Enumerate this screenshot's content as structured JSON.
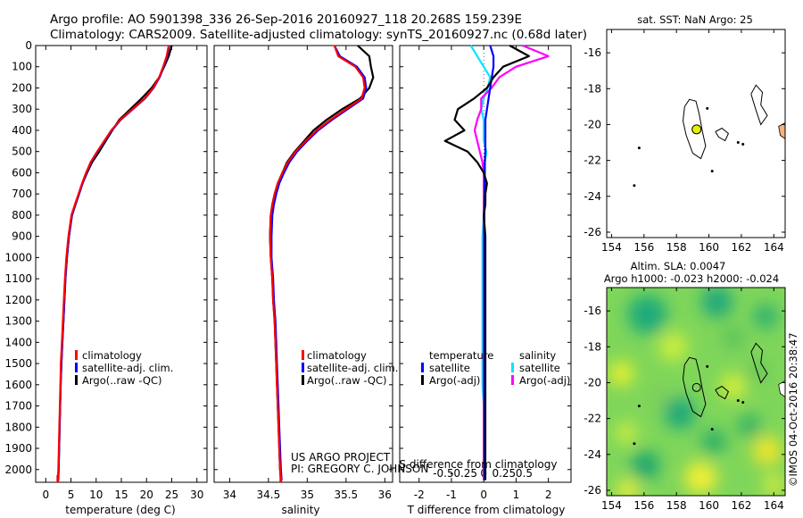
{
  "header": {
    "line1": "Argo profile: AO 5901398_336 26-Sep-2016 20160927_118 20.268S 159.239E",
    "line2": "Climatology: CARS2009. Satellite-adjusted climatology: synTS_20160927.nc (0.68d later)"
  },
  "colors": {
    "climatology": "#ff0000",
    "satellite": "#0000ff",
    "argo": "#000000",
    "salinity_satellite": "#00e5ff",
    "salinity_argo": "#ff00ff",
    "land": "#f5b27a",
    "float_marker": "#e6f000"
  },
  "credits": {
    "project": "US ARGO PROJECT",
    "pi": "PI: GREGORY C. JOHNSON",
    "imos": "©IMOS 04-Oct-2016 20:38:47"
  },
  "chart_data": [
    {
      "type": "line",
      "xlabel": "temperature (deg C)",
      "xticks": [
        0,
        5,
        10,
        15,
        20,
        25,
        30
      ],
      "xlim": [
        -2,
        32
      ],
      "yticks": [
        0,
        100,
        200,
        300,
        400,
        500,
        600,
        700,
        800,
        900,
        1000,
        1100,
        1200,
        1300,
        1400,
        1500,
        1600,
        1700,
        1800,
        1900,
        2000
      ],
      "ylim": [
        2060,
        0
      ],
      "legend": [
        "climatology",
        "satellite-adj. clim.",
        "Argo(..raw -QC)"
      ],
      "depth": [
        0,
        50,
        100,
        150,
        200,
        250,
        300,
        350,
        400,
        450,
        500,
        550,
        600,
        650,
        700,
        750,
        800,
        900,
        1000,
        1100,
        1200,
        1300,
        1400,
        1500,
        1600,
        1700,
        1800,
        1900,
        2000,
        2050
      ],
      "series": [
        {
          "name": "climatology",
          "values": [
            24.4,
            24,
            23.3,
            22.5,
            21.3,
            19.6,
            17.2,
            14.8,
            13.0,
            11.6,
            10.2,
            8.9,
            8.0,
            7.2,
            6.5,
            5.8,
            5.1,
            4.5,
            4.1,
            3.8,
            3.6,
            3.4,
            3.2,
            3.0,
            2.9,
            2.8,
            2.7,
            2.6,
            2.5,
            2.4
          ]
        },
        {
          "name": "satellite-adj. clim.",
          "values": [
            24.5,
            24.1,
            23.4,
            22.6,
            21.4,
            19.7,
            17.3,
            14.9,
            13.1,
            11.7,
            10.3,
            9.0,
            8.1,
            7.3,
            6.6,
            5.9,
            5.2,
            4.6,
            4.2,
            3.9,
            3.7,
            3.5,
            3.3,
            3.1,
            2.95,
            2.85,
            2.75,
            2.65,
            2.55,
            2.45
          ]
        },
        {
          "name": "Argo(..raw -QC)",
          "values": [
            25.0,
            24.4,
            23.5,
            22.5,
            21.0,
            19.0,
            16.8,
            14.6,
            13.2,
            11.9,
            10.6,
            9.2,
            8.2,
            7.3,
            6.6,
            5.9,
            5.2,
            4.6,
            4.2,
            3.9,
            3.7,
            3.5,
            3.3,
            3.1,
            2.95,
            2.85,
            2.75,
            2.65,
            2.55,
            2.5
          ]
        }
      ]
    },
    {
      "type": "line",
      "xlabel": "salinity",
      "xticks": [
        34,
        34.5,
        35,
        35.5,
        36
      ],
      "xlim": [
        33.8,
        36.1
      ],
      "legend": [
        "climatology",
        "satellite-adj. clim.",
        "Argo(..raw -QC)"
      ],
      "depth": [
        0,
        50,
        100,
        150,
        200,
        250,
        300,
        350,
        400,
        450,
        500,
        550,
        600,
        650,
        700,
        750,
        800,
        900,
        1000,
        1100,
        1200,
        1300,
        1400,
        1500,
        1600,
        1700,
        1800,
        1900,
        2000,
        2050
      ],
      "series": [
        {
          "name": "climatology",
          "values": [
            35.35,
            35.4,
            35.62,
            35.72,
            35.74,
            35.7,
            35.5,
            35.3,
            35.12,
            34.98,
            34.85,
            34.75,
            34.68,
            34.62,
            34.58,
            34.55,
            34.53,
            34.52,
            34.53,
            34.55,
            34.56,
            34.58,
            34.59,
            34.6,
            34.61,
            34.62,
            34.63,
            34.64,
            34.65,
            34.66
          ]
        },
        {
          "name": "satellite-adj. clim.",
          "values": [
            35.35,
            35.42,
            35.64,
            35.74,
            35.76,
            35.72,
            35.52,
            35.32,
            35.14,
            35.0,
            34.87,
            34.77,
            34.7,
            34.64,
            34.6,
            34.57,
            34.55,
            34.54,
            34.54,
            34.56,
            34.57,
            34.59,
            34.6,
            34.61,
            34.62,
            34.63,
            34.64,
            34.65,
            34.66,
            34.67
          ]
        },
        {
          "name": "Argo(..raw -QC)",
          "values": [
            35.65,
            35.8,
            35.82,
            35.85,
            35.8,
            35.68,
            35.45,
            35.25,
            35.08,
            34.96,
            34.84,
            34.74,
            34.68,
            34.62,
            34.58,
            34.55,
            34.53,
            34.52,
            34.53,
            34.55,
            34.56,
            34.58,
            34.59,
            34.6,
            34.61,
            34.62,
            34.63,
            34.64,
            34.65,
            34.66
          ]
        }
      ]
    },
    {
      "type": "line",
      "xlabel": "T difference from climatology",
      "xlabel_top": "S difference from climatology",
      "xticks": [
        -2,
        -1,
        0,
        1,
        2
      ],
      "xticks_salinity": [
        "-0.5",
        "-0.25",
        "0",
        "0.25",
        "0.5"
      ],
      "xlim": [
        -2.6,
        2.7
      ],
      "legend_left_title": "temperature",
      "legend_right_title": "salinity",
      "legend": [
        "satellite",
        "Argo(-adj)",
        "satellite",
        "Argo(-adj)"
      ],
      "depth": [
        0,
        50,
        100,
        150,
        200,
        250,
        300,
        350,
        400,
        450,
        500,
        550,
        600,
        650,
        700,
        750,
        800,
        900,
        1000,
        1100,
        1200,
        1300,
        1400,
        1500,
        1600,
        1700,
        1800,
        1900,
        2000,
        2050
      ],
      "series": [
        {
          "name": "temperature satellite",
          "values": [
            0.2,
            0.3,
            0.3,
            0.25,
            0.2,
            0.15,
            0.1,
            0.05,
            0.05,
            0.05,
            0.05,
            0.03,
            0.03,
            0.03,
            0.03,
            0.02,
            0.02,
            0.02,
            0.02,
            0.02,
            0.02,
            0.02,
            0.02,
            0.02,
            0.02,
            0.02,
            0.02,
            0.02,
            0.02,
            0.02
          ]
        },
        {
          "name": "temperature Argo(-adj)",
          "values": [
            0.8,
            1.4,
            0.6,
            0.3,
            0.1,
            -0.3,
            -0.8,
            -0.9,
            -0.6,
            -1.2,
            -0.5,
            -0.2,
            0.0,
            0.1,
            0.05,
            0.05,
            0.0,
            0.05,
            0.05,
            0.05,
            0.05,
            0.05,
            0.05,
            0.05,
            0.05,
            0.05,
            0.05,
            0.05,
            0.05,
            0.05
          ]
        },
        {
          "name": "salinity satellite",
          "values": [
            -0.1,
            -0.05,
            0.0,
            0.05,
            0.03,
            0.0,
            -0.02,
            0.0,
            0.0,
            0.0,
            0.02,
            0.01,
            0.01,
            0.0,
            0.0,
            0.0,
            0.0,
            -0.01,
            -0.01,
            -0.01,
            -0.01,
            -0.01,
            -0.01,
            -0.01,
            -0.01,
            0.0,
            0.0,
            0.0,
            0.0,
            0.0
          ]
        },
        {
          "name": "salinity Argo(-adj)",
          "values": [
            0.3,
            0.5,
            0.25,
            0.12,
            0.06,
            -0.02,
            -0.02,
            -0.05,
            -0.07,
            -0.05,
            -0.03,
            -0.01,
            0.0,
            0.0,
            0.0,
            0.0,
            0.0,
            0.0,
            0.0,
            0.0,
            0.0,
            0.0,
            0.0,
            0.0,
            0.0,
            0.0,
            0.0,
            0.0,
            0.0,
            0.0
          ]
        }
      ]
    },
    {
      "type": "map",
      "title": "sat. SST: NaN Argo: 25",
      "xticks": [
        154,
        156,
        158,
        160,
        162,
        164
      ],
      "yticks": [
        -16,
        -18,
        -20,
        -22,
        -24,
        -26
      ],
      "xlim": [
        153.7,
        164.7
      ],
      "ylim": [
        -26.3,
        -14.7
      ],
      "float_position": {
        "lon": 159.239,
        "lat": -20.268
      }
    },
    {
      "type": "heatmap",
      "title": "Altim. SLA: 0.0047",
      "subtitle": "Argo h1000: -0.023 h2000: -0.024",
      "xticks": [
        154,
        156,
        158,
        160,
        162,
        164
      ],
      "yticks": [
        -16,
        -18,
        -20,
        -22,
        -24,
        -26
      ],
      "xlim": [
        153.7,
        164.7
      ],
      "ylim": [
        -26.3,
        -14.7
      ],
      "float_position": {
        "lon": 159.239,
        "lat": -20.268
      }
    }
  ]
}
